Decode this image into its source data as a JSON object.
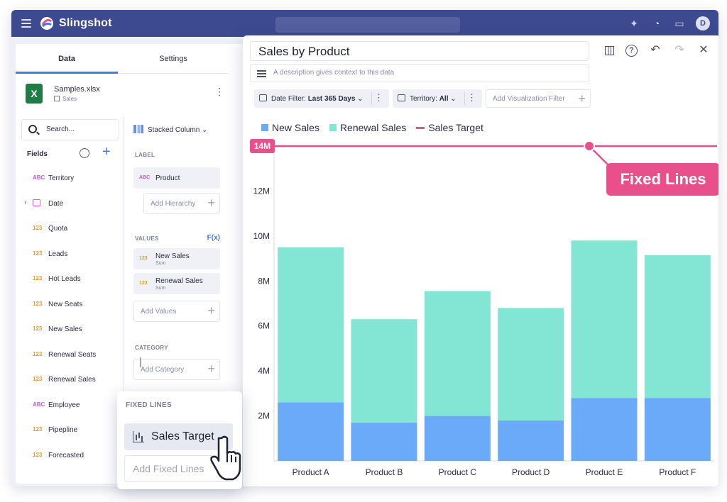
{
  "app": {
    "brand": "Slingshot",
    "avatar_initial": "D"
  },
  "left_panel": {
    "tabs": [
      {
        "label": "Data",
        "active": true
      },
      {
        "label": "Settings",
        "active": false
      }
    ],
    "file": {
      "name": "Samples.xlsx",
      "sheet": "Sales",
      "icon_letter": "X"
    },
    "search": {
      "placeholder": "Search..."
    },
    "fields_header": "Fields",
    "fields": [
      {
        "type": "ABC",
        "name": "Territory"
      },
      {
        "type": "date",
        "name": "Date",
        "expandable": true
      },
      {
        "type": "123",
        "name": "Quota"
      },
      {
        "type": "123",
        "name": "Leads"
      },
      {
        "type": "123",
        "name": "Hot Leads"
      },
      {
        "type": "123",
        "name": "New Seats"
      },
      {
        "type": "123",
        "name": "New Sales"
      },
      {
        "type": "123",
        "name": "Renewal Seats"
      },
      {
        "type": "123",
        "name": "Renewal Sales"
      },
      {
        "type": "ABC",
        "name": "Employee"
      },
      {
        "type": "123",
        "name": "Pipepline"
      },
      {
        "type": "123",
        "name": "Forecasted"
      }
    ],
    "config": {
      "chart_type": "Stacked Column",
      "label_header": "LABEL",
      "label_item": {
        "type": "ABC",
        "name": "Product"
      },
      "add_hierarchy": "Add Hierarchy",
      "values_header": "VALUES",
      "fx_label": "F(x)",
      "values": [
        {
          "type": "123",
          "name": "New Sales",
          "agg": "Sum"
        },
        {
          "type": "123",
          "name": "Renewal Sales",
          "agg": "Sum"
        }
      ],
      "add_values": "Add Values",
      "category_header": "CATEGORY",
      "add_category": "Add Category"
    }
  },
  "viz": {
    "title": "Sales by Product",
    "description_placeholder": "A description gives context to this data",
    "filters": [
      {
        "label": "Date Filter:",
        "value": "Last 365 Days"
      },
      {
        "label": "Territory:",
        "value": "All"
      }
    ],
    "add_filter": "Add Visualization Filter",
    "callout": "Fixed Lines",
    "target_badge": "14M"
  },
  "fixed_lines_popup": {
    "header": "FIXED LINES",
    "item": "Sales Target",
    "add": "Add Fixed Lines"
  },
  "colors": {
    "new_sales": "#6aaaf9",
    "renewal_sales": "#83e6d4",
    "target": "#e8508c",
    "accent": "#4a78e0",
    "topbar": "#3d4a8f"
  },
  "chart_data": {
    "type": "bar",
    "stacked": true,
    "categories": [
      "Product A",
      "Product B",
      "Product C",
      "Product D",
      "Product E",
      "Product F"
    ],
    "series": [
      {
        "name": "New Sales",
        "values": [
          2.6,
          1.7,
          2.0,
          1.8,
          2.8,
          2.8
        ]
      },
      {
        "name": "Renewal Sales",
        "values": [
          6.9,
          4.6,
          5.55,
          5.0,
          7.0,
          6.35
        ]
      }
    ],
    "fixed_line": {
      "name": "Sales Target",
      "value": 14
    },
    "y_ticks": [
      "2M",
      "4M",
      "6M",
      "8M",
      "10M",
      "12M"
    ],
    "y_tick_values": [
      2,
      4,
      6,
      8,
      10,
      12
    ],
    "ylim": [
      0,
      14
    ],
    "legend_position": "top-left",
    "grid": false
  }
}
